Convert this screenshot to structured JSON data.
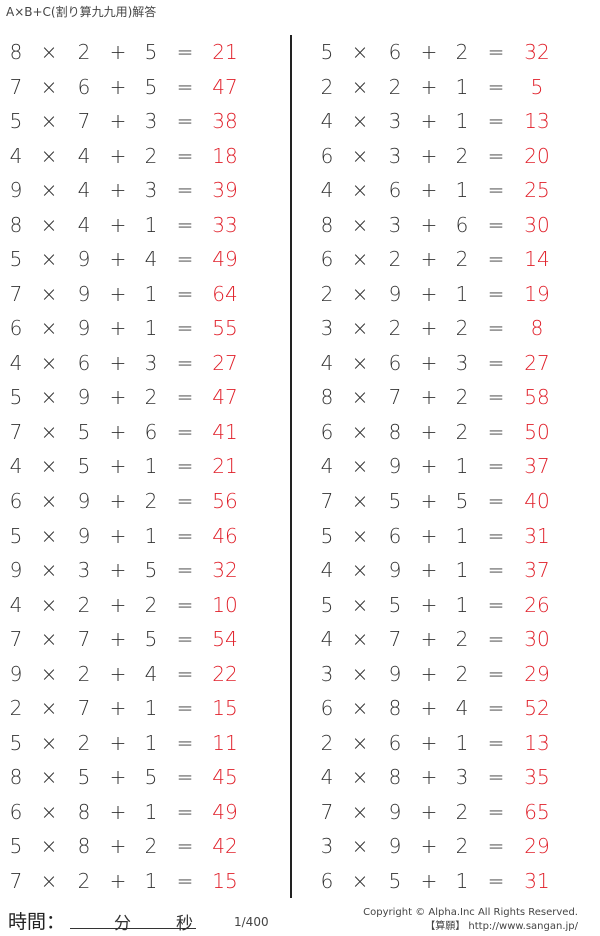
{
  "title": "A×B+C(割り算九九用)解答",
  "symbols": {
    "times": "×",
    "plus": "+",
    "equals": "="
  },
  "colors": {
    "answer": "#e0202a",
    "text": "#333333"
  },
  "left_problems": [
    {
      "a": "8",
      "b": "2",
      "c": "5",
      "answer": "21"
    },
    {
      "a": "7",
      "b": "6",
      "c": "5",
      "answer": "47"
    },
    {
      "a": "5",
      "b": "7",
      "c": "3",
      "answer": "38"
    },
    {
      "a": "4",
      "b": "4",
      "c": "2",
      "answer": "18"
    },
    {
      "a": "9",
      "b": "4",
      "c": "3",
      "answer": "39"
    },
    {
      "a": "8",
      "b": "4",
      "c": "1",
      "answer": "33"
    },
    {
      "a": "5",
      "b": "9",
      "c": "4",
      "answer": "49"
    },
    {
      "a": "7",
      "b": "9",
      "c": "1",
      "answer": "64"
    },
    {
      "a": "6",
      "b": "9",
      "c": "1",
      "answer": "55"
    },
    {
      "a": "4",
      "b": "6",
      "c": "3",
      "answer": "27"
    },
    {
      "a": "5",
      "b": "9",
      "c": "2",
      "answer": "47"
    },
    {
      "a": "7",
      "b": "5",
      "c": "6",
      "answer": "41"
    },
    {
      "a": "4",
      "b": "5",
      "c": "1",
      "answer": "21"
    },
    {
      "a": "6",
      "b": "9",
      "c": "2",
      "answer": "56"
    },
    {
      "a": "5",
      "b": "9",
      "c": "1",
      "answer": "46"
    },
    {
      "a": "9",
      "b": "3",
      "c": "5",
      "answer": "32"
    },
    {
      "a": "4",
      "b": "2",
      "c": "2",
      "answer": "10"
    },
    {
      "a": "7",
      "b": "7",
      "c": "5",
      "answer": "54"
    },
    {
      "a": "9",
      "b": "2",
      "c": "4",
      "answer": "22"
    },
    {
      "a": "2",
      "b": "7",
      "c": "1",
      "answer": "15"
    },
    {
      "a": "5",
      "b": "2",
      "c": "1",
      "answer": "11"
    },
    {
      "a": "8",
      "b": "5",
      "c": "5",
      "answer": "45"
    },
    {
      "a": "6",
      "b": "8",
      "c": "1",
      "answer": "49"
    },
    {
      "a": "5",
      "b": "8",
      "c": "2",
      "answer": "42"
    },
    {
      "a": "7",
      "b": "2",
      "c": "1",
      "answer": "15"
    }
  ],
  "right_problems": [
    {
      "a": "5",
      "b": "6",
      "c": "2",
      "answer": "32"
    },
    {
      "a": "2",
      "b": "2",
      "c": "1",
      "answer": "5"
    },
    {
      "a": "4",
      "b": "3",
      "c": "1",
      "answer": "13"
    },
    {
      "a": "6",
      "b": "3",
      "c": "2",
      "answer": "20"
    },
    {
      "a": "4",
      "b": "6",
      "c": "1",
      "answer": "25"
    },
    {
      "a": "8",
      "b": "3",
      "c": "6",
      "answer": "30"
    },
    {
      "a": "6",
      "b": "2",
      "c": "2",
      "answer": "14"
    },
    {
      "a": "2",
      "b": "9",
      "c": "1",
      "answer": "19"
    },
    {
      "a": "3",
      "b": "2",
      "c": "2",
      "answer": "8"
    },
    {
      "a": "4",
      "b": "6",
      "c": "3",
      "answer": "27"
    },
    {
      "a": "8",
      "b": "7",
      "c": "2",
      "answer": "58"
    },
    {
      "a": "6",
      "b": "8",
      "c": "2",
      "answer": "50"
    },
    {
      "a": "4",
      "b": "9",
      "c": "1",
      "answer": "37"
    },
    {
      "a": "7",
      "b": "5",
      "c": "5",
      "answer": "40"
    },
    {
      "a": "5",
      "b": "6",
      "c": "1",
      "answer": "31"
    },
    {
      "a": "4",
      "b": "9",
      "c": "1",
      "answer": "37"
    },
    {
      "a": "5",
      "b": "5",
      "c": "1",
      "answer": "26"
    },
    {
      "a": "4",
      "b": "7",
      "c": "2",
      "answer": "30"
    },
    {
      "a": "3",
      "b": "9",
      "c": "2",
      "answer": "29"
    },
    {
      "a": "6",
      "b": "8",
      "c": "4",
      "answer": "52"
    },
    {
      "a": "2",
      "b": "6",
      "c": "1",
      "answer": "13"
    },
    {
      "a": "4",
      "b": "8",
      "c": "3",
      "answer": "35"
    },
    {
      "a": "7",
      "b": "9",
      "c": "2",
      "answer": "65"
    },
    {
      "a": "3",
      "b": "9",
      "c": "2",
      "answer": "29"
    },
    {
      "a": "6",
      "b": "5",
      "c": "1",
      "answer": "31"
    }
  ],
  "footer": {
    "time_label": "時間：",
    "minutes_label": "分",
    "seconds_label": "秒",
    "page": "1/400",
    "copyright": "Copyright © Alpha.Inc All Rights Reserved.",
    "site": "【算願】 http://www.sangan.jp/"
  }
}
